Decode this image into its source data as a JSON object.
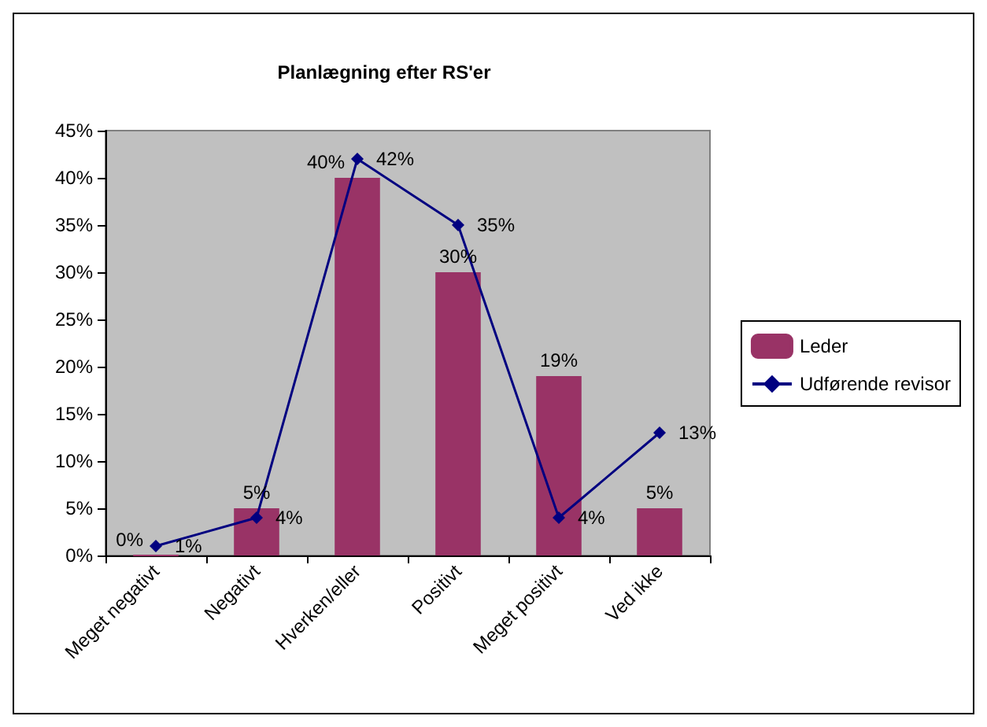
{
  "chart_data": {
    "type": "bar",
    "title": "Planlægning efter RS'er",
    "categories": [
      "Meget negativt",
      "Negativt",
      "Hverken/eller",
      "Positivt",
      "Meget positivt",
      "Ved ikke"
    ],
    "series": [
      {
        "name": "Leder",
        "color": "#993366",
        "values": [
          0,
          5,
          40,
          30,
          19,
          5
        ],
        "value_labels": [
          "0%",
          "5%",
          "40%",
          "30%",
          "19%",
          "5%"
        ]
      },
      {
        "name": "Udførende revisor",
        "type": "line",
        "color": "#000080",
        "values": [
          1,
          4,
          42,
          35,
          4,
          13
        ],
        "value_labels": [
          "1%",
          "4%",
          "42%",
          "35%",
          "4%",
          "13%"
        ]
      }
    ],
    "ylim": [
      0,
      45
    ],
    "yticks": [
      {
        "value": 0,
        "label": "0%"
      },
      {
        "value": 5,
        "label": "5%"
      },
      {
        "value": 10,
        "label": "10%"
      },
      {
        "value": 15,
        "label": "15%"
      },
      {
        "value": 20,
        "label": "20%"
      },
      {
        "value": 25,
        "label": "25%"
      },
      {
        "value": 30,
        "label": "30%"
      },
      {
        "value": 35,
        "label": "35%"
      },
      {
        "value": 40,
        "label": "40%"
      },
      {
        "value": 45,
        "label": "45%"
      }
    ],
    "grid": false,
    "legend": "right",
    "marker": "diamond",
    "line_style": "solid"
  }
}
